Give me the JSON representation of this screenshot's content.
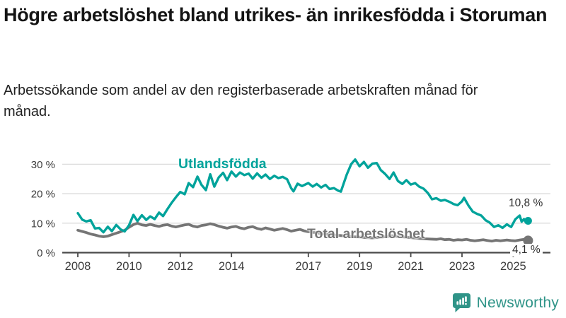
{
  "header": {
    "title": "Högre arbetslöshet bland utrikes- än inrikesfödda i Storuman",
    "subtitle": "Arbetssökande som andel av den registerbaserade arbetskraften månad för månad."
  },
  "footer": {
    "brand": "Newsworthy",
    "brand_icon": "bar-chart-speech-bubble"
  },
  "colors": {
    "teal": "#00a39b",
    "gray": "#757575",
    "brand": "#2f9488",
    "grid": "#dcdcdc",
    "axis": "#4a4a4a",
    "tick_text": "#3d3d3d",
    "title_text": "#141414"
  },
  "chart_data": {
    "type": "line",
    "title": "Högre arbetslöshet bland utrikes- än inrikesfödda i Storuman",
    "subtitle": "Arbetssökande som andel av den registerbaserade arbetskraften månad för månad.",
    "unit": "%",
    "xlim": [
      2007.9,
      2026.4
    ],
    "ylim": [
      0,
      33
    ],
    "grid": "horizontal",
    "legend_position": "inline-labels",
    "x_ticks": [
      2008,
      2010,
      2012,
      2014,
      2017,
      2019,
      2021,
      2023,
      2025
    ],
    "y_axis": [
      {
        "value": 0,
        "label": "0 %"
      },
      {
        "value": 10,
        "label": "10 %"
      },
      {
        "value": 20,
        "label": "20 %"
      },
      {
        "value": 30,
        "label": "30 %"
      }
    ],
    "series": [
      {
        "id": "total-arbetsloshet",
        "name": "Total arbetslöshet",
        "color": "#757575",
        "width": 3.8,
        "dot_radius": 7,
        "end_label": "4,1 %",
        "end_value": 4.1,
        "points": [
          [
            2008.0,
            7.6
          ],
          [
            2008.17,
            7.2
          ],
          [
            2008.33,
            6.8
          ],
          [
            2008.5,
            6.3
          ],
          [
            2008.67,
            6.0
          ],
          [
            2008.83,
            5.6
          ],
          [
            2009.0,
            5.4
          ],
          [
            2009.17,
            5.6
          ],
          [
            2009.33,
            6.1
          ],
          [
            2009.5,
            6.6
          ],
          [
            2009.67,
            7.1
          ],
          [
            2009.83,
            7.6
          ],
          [
            2010.0,
            8.6
          ],
          [
            2010.17,
            9.5
          ],
          [
            2010.33,
            10.0
          ],
          [
            2010.5,
            9.4
          ],
          [
            2010.67,
            9.2
          ],
          [
            2010.83,
            9.6
          ],
          [
            2011.0,
            9.2
          ],
          [
            2011.17,
            8.9
          ],
          [
            2011.33,
            9.3
          ],
          [
            2011.5,
            9.5
          ],
          [
            2011.67,
            9.0
          ],
          [
            2011.83,
            8.7
          ],
          [
            2012.0,
            9.1
          ],
          [
            2012.17,
            9.4
          ],
          [
            2012.33,
            9.6
          ],
          [
            2012.5,
            9.0
          ],
          [
            2012.67,
            8.7
          ],
          [
            2012.83,
            9.2
          ],
          [
            2013.0,
            9.4
          ],
          [
            2013.17,
            9.8
          ],
          [
            2013.33,
            9.5
          ],
          [
            2013.5,
            9.0
          ],
          [
            2013.67,
            8.6
          ],
          [
            2013.83,
            8.3
          ],
          [
            2014.0,
            8.7
          ],
          [
            2014.17,
            8.9
          ],
          [
            2014.33,
            8.4
          ],
          [
            2014.5,
            8.1
          ],
          [
            2014.67,
            8.6
          ],
          [
            2014.83,
            8.8
          ],
          [
            2015.0,
            8.2
          ],
          [
            2015.17,
            7.9
          ],
          [
            2015.33,
            8.4
          ],
          [
            2015.5,
            8.0
          ],
          [
            2015.67,
            7.6
          ],
          [
            2015.83,
            7.9
          ],
          [
            2016.0,
            8.2
          ],
          [
            2016.17,
            7.8
          ],
          [
            2016.33,
            7.3
          ],
          [
            2016.5,
            7.6
          ],
          [
            2016.67,
            7.9
          ],
          [
            2016.83,
            7.4
          ],
          [
            2017.0,
            7.1
          ],
          [
            2017.25,
            6.8
          ],
          [
            2017.5,
            6.5
          ],
          [
            2017.75,
            6.2
          ],
          [
            2018.0,
            6.0
          ],
          [
            2018.25,
            5.8
          ],
          [
            2018.5,
            5.6
          ],
          [
            2018.75,
            5.4
          ],
          [
            2019.0,
            5.3
          ],
          [
            2019.25,
            5.1
          ],
          [
            2019.5,
            5.0
          ],
          [
            2019.75,
            5.2
          ],
          [
            2020.0,
            5.4
          ],
          [
            2020.25,
            5.7
          ],
          [
            2020.5,
            5.5
          ],
          [
            2020.75,
            5.3
          ],
          [
            2021.0,
            5.1
          ],
          [
            2021.25,
            4.9
          ],
          [
            2021.5,
            4.7
          ],
          [
            2021.75,
            4.6
          ],
          [
            2022.0,
            4.5
          ],
          [
            2022.17,
            4.7
          ],
          [
            2022.33,
            4.4
          ],
          [
            2022.5,
            4.5
          ],
          [
            2022.67,
            4.2
          ],
          [
            2022.83,
            4.4
          ],
          [
            2023.0,
            4.3
          ],
          [
            2023.17,
            4.5
          ],
          [
            2023.33,
            4.2
          ],
          [
            2023.5,
            4.0
          ],
          [
            2023.67,
            4.2
          ],
          [
            2023.83,
            4.4
          ],
          [
            2024.0,
            4.1
          ],
          [
            2024.17,
            3.9
          ],
          [
            2024.33,
            4.2
          ],
          [
            2024.5,
            4.0
          ],
          [
            2024.75,
            4.3
          ],
          [
            2024.92,
            4.1
          ],
          [
            2025.08,
            4.0
          ],
          [
            2025.25,
            4.3
          ],
          [
            2025.42,
            4.5
          ],
          [
            2025.58,
            4.1
          ]
        ]
      },
      {
        "id": "utlandsfodda",
        "name": "Utlandsfödda",
        "color": "#00a39b",
        "width": 3.4,
        "dot_radius": 5.5,
        "end_label": "10,8 %",
        "end_value": 10.8,
        "points": [
          [
            2008.0,
            13.4
          ],
          [
            2008.17,
            11.2
          ],
          [
            2008.33,
            10.6
          ],
          [
            2008.5,
            11.0
          ],
          [
            2008.67,
            8.2
          ],
          [
            2008.83,
            8.4
          ],
          [
            2009.0,
            6.9
          ],
          [
            2009.17,
            8.8
          ],
          [
            2009.33,
            7.3
          ],
          [
            2009.5,
            9.4
          ],
          [
            2009.67,
            7.9
          ],
          [
            2009.83,
            7.2
          ],
          [
            2010.0,
            9.3
          ],
          [
            2010.17,
            12.8
          ],
          [
            2010.33,
            10.7
          ],
          [
            2010.5,
            12.7
          ],
          [
            2010.67,
            11.1
          ],
          [
            2010.83,
            12.3
          ],
          [
            2011.0,
            11.4
          ],
          [
            2011.17,
            13.6
          ],
          [
            2011.33,
            12.4
          ],
          [
            2011.5,
            14.8
          ],
          [
            2011.67,
            17.0
          ],
          [
            2011.83,
            18.8
          ],
          [
            2012.0,
            20.6
          ],
          [
            2012.17,
            19.8
          ],
          [
            2012.33,
            23.6
          ],
          [
            2012.5,
            22.2
          ],
          [
            2012.67,
            25.8
          ],
          [
            2012.83,
            23.0
          ],
          [
            2013.0,
            21.2
          ],
          [
            2013.17,
            26.6
          ],
          [
            2013.33,
            22.4
          ],
          [
            2013.5,
            25.5
          ],
          [
            2013.67,
            27.1
          ],
          [
            2013.83,
            24.6
          ],
          [
            2014.0,
            27.5
          ],
          [
            2014.17,
            25.8
          ],
          [
            2014.33,
            27.2
          ],
          [
            2014.5,
            26.3
          ],
          [
            2014.67,
            26.8
          ],
          [
            2014.83,
            25.1
          ],
          [
            2015.0,
            26.9
          ],
          [
            2015.17,
            25.4
          ],
          [
            2015.33,
            26.5
          ],
          [
            2015.5,
            25.0
          ],
          [
            2015.67,
            26.1
          ],
          [
            2015.83,
            25.3
          ],
          [
            2016.0,
            25.7
          ],
          [
            2016.17,
            24.9
          ],
          [
            2016.33,
            21.9
          ],
          [
            2016.42,
            20.8
          ],
          [
            2016.58,
            23.4
          ],
          [
            2016.75,
            22.6
          ],
          [
            2017.0,
            23.6
          ],
          [
            2017.17,
            22.4
          ],
          [
            2017.33,
            23.3
          ],
          [
            2017.5,
            22.1
          ],
          [
            2017.67,
            23.0
          ],
          [
            2017.83,
            21.6
          ],
          [
            2018.0,
            21.9
          ],
          [
            2018.17,
            21.0
          ],
          [
            2018.27,
            20.7
          ],
          [
            2018.5,
            26.5
          ],
          [
            2018.67,
            30.0
          ],
          [
            2018.83,
            31.6
          ],
          [
            2019.0,
            29.3
          ],
          [
            2019.17,
            30.8
          ],
          [
            2019.33,
            28.8
          ],
          [
            2019.5,
            30.2
          ],
          [
            2019.67,
            30.4
          ],
          [
            2019.83,
            28.0
          ],
          [
            2020.0,
            26.7
          ],
          [
            2020.17,
            25.0
          ],
          [
            2020.33,
            27.2
          ],
          [
            2020.5,
            24.3
          ],
          [
            2020.67,
            23.3
          ],
          [
            2020.83,
            24.6
          ],
          [
            2021.0,
            23.1
          ],
          [
            2021.17,
            23.6
          ],
          [
            2021.33,
            22.4
          ],
          [
            2021.5,
            21.7
          ],
          [
            2021.67,
            20.2
          ],
          [
            2021.83,
            18.1
          ],
          [
            2022.0,
            18.5
          ],
          [
            2022.17,
            17.6
          ],
          [
            2022.33,
            17.9
          ],
          [
            2022.5,
            17.3
          ],
          [
            2022.67,
            16.5
          ],
          [
            2022.83,
            16.1
          ],
          [
            2023.0,
            17.4
          ],
          [
            2023.08,
            18.6
          ],
          [
            2023.25,
            16.0
          ],
          [
            2023.42,
            13.9
          ],
          [
            2023.58,
            13.2
          ],
          [
            2023.75,
            12.6
          ],
          [
            2023.92,
            11.0
          ],
          [
            2024.08,
            10.2
          ],
          [
            2024.25,
            8.7
          ],
          [
            2024.42,
            9.3
          ],
          [
            2024.58,
            8.4
          ],
          [
            2024.75,
            9.6
          ],
          [
            2024.92,
            8.7
          ],
          [
            2025.08,
            11.3
          ],
          [
            2025.25,
            12.6
          ],
          [
            2025.33,
            10.5
          ],
          [
            2025.42,
            11.4
          ],
          [
            2025.5,
            10.2
          ],
          [
            2025.58,
            10.8
          ]
        ]
      }
    ]
  }
}
